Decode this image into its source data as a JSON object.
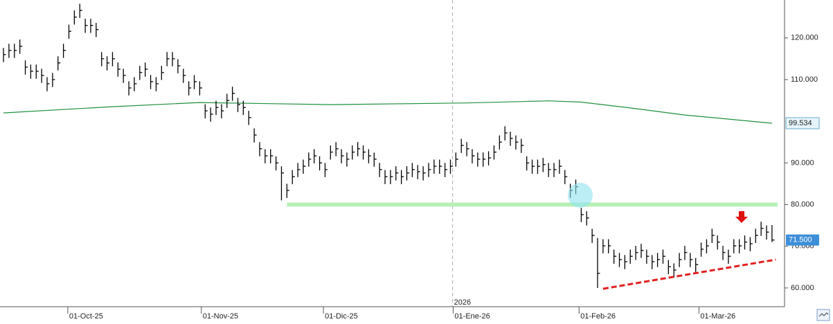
{
  "chart_data": {
    "type": "ohlc",
    "color": "#000000",
    "ylim": [
      55.5,
      129.1
    ],
    "yticks": [
      {
        "value": 60,
        "label": "60.000"
      },
      {
        "value": 70,
        "label": "70.000"
      },
      {
        "value": 80,
        "label": "80.000"
      },
      {
        "value": 90,
        "label": "90.000"
      },
      {
        "value": 110,
        "label": "110.000"
      },
      {
        "value": 120,
        "label": "120.000"
      }
    ],
    "xlim": [
      -0.64,
      143.3
    ],
    "xticks": [
      {
        "value": 11.8,
        "label": "01-Oct-25"
      },
      {
        "value": 36.3,
        "label": "01-Nov-25"
      },
      {
        "value": 58.7,
        "label": "01-Dic-25"
      },
      {
        "value": 82.5,
        "label": "01-Ene-26"
      },
      {
        "value": 105.6,
        "label": "01-Feb-26"
      },
      {
        "value": 127.6,
        "label": "01-Mar-26"
      }
    ],
    "year_marker": {
      "value": 82.4,
      "label": "2026"
    },
    "high": [
      117.6,
      118.6,
      118.6,
      119.6,
      114.6,
      113.6,
      113.6,
      112.6,
      110.6,
      111.6,
      115.6,
      118.6,
      123.2,
      126.6,
      128.2,
      124.6,
      124.6,
      123.6,
      116.6,
      115.6,
      116.6,
      114.1,
      112.6,
      109.6,
      110.6,
      113.3,
      114.1,
      111.1,
      110.6,
      113.3,
      116.6,
      116.6,
      114.9,
      112.6,
      109.6,
      111.1,
      109.6,
      104.1,
      103.3,
      104.9,
      104.1,
      106.6,
      108.3,
      105.6,
      104.9,
      102.5,
      98.3,
      95,
      93.3,
      93.3,
      91.6,
      89.2,
      85,
      88.3,
      90,
      90.8,
      92.5,
      93.3,
      91.6,
      90,
      94.2,
      95,
      93.3,
      92.5,
      94.2,
      95,
      94.2,
      93.3,
      92.5,
      90,
      88.3,
      88.3,
      89.2,
      88.3,
      89.2,
      90,
      89.5,
      89.2,
      90,
      90.8,
      90.8,
      90,
      90.8,
      92.5,
      95.8,
      95,
      93.3,
      92.5,
      92.5,
      92.8,
      94.2,
      96.6,
      98.8,
      97.5,
      96.6,
      95.8,
      91.6,
      90.8,
      90.8,
      91.2,
      90,
      90,
      90.8,
      88.3,
      85,
      86,
      79.2,
      78.4,
      74.2,
      72,
      71.7,
      71.7,
      69.2,
      68.4,
      67.9,
      69.2,
      70.1,
      70.6,
      69.2,
      67.9,
      68.4,
      69.2,
      66.7,
      65.9,
      68.4,
      70.1,
      68.4,
      67.2,
      70.9,
      71.7,
      74.2,
      72.6,
      70.1,
      69.2,
      71.7,
      71.7,
      72.6,
      72.2,
      74.2,
      75.9,
      75,
      75.1
    ],
    "low": [
      114.2,
      115.2,
      115.2,
      116.2,
      111.2,
      110.2,
      110.2,
      109.2,
      107.2,
      108.2,
      112.2,
      115.2,
      119.8,
      123.2,
      124.8,
      121.2,
      121.2,
      120.2,
      113.2,
      112.2,
      113.2,
      110.7,
      109.2,
      106.2,
      107.2,
      109.9,
      110.7,
      107.7,
      107.2,
      109.9,
      113.2,
      113.2,
      111.5,
      109.2,
      106.2,
      107.7,
      106.2,
      100.7,
      99.9,
      101.5,
      100.7,
      103.2,
      104.9,
      102.2,
      101.5,
      99.1,
      94.9,
      91.6,
      89.9,
      89.9,
      88.2,
      81,
      81.6,
      84.9,
      86.6,
      87.4,
      89.1,
      89.9,
      88.2,
      86.6,
      90.8,
      91.6,
      89.9,
      89.1,
      90.8,
      91.6,
      90.8,
      89.9,
      89.1,
      86.6,
      84.9,
      84.9,
      85.8,
      84.9,
      85.8,
      86.6,
      86.1,
      85.8,
      86.6,
      87.4,
      87.4,
      86.6,
      87.4,
      89.1,
      92.4,
      91.6,
      89.9,
      89.1,
      89.1,
      89.4,
      90.8,
      93.2,
      95.4,
      94.1,
      93.2,
      92.4,
      88.2,
      87.4,
      87.4,
      87.8,
      86.6,
      86.6,
      87.4,
      84.9,
      81.6,
      82.5,
      75.8,
      75,
      70.8,
      60,
      68.3,
      68.3,
      65.8,
      65,
      64.5,
      65.8,
      66.7,
      67.2,
      65.8,
      64.5,
      65,
      65.8,
      63.3,
      62.5,
      65,
      66.7,
      65,
      63.8,
      67.5,
      68.3,
      70.8,
      69.2,
      66.7,
      65.8,
      68.3,
      68.3,
      69.2,
      68.8,
      70.8,
      72.5,
      71.6,
      71
    ],
    "close": [
      116,
      117,
      117,
      118,
      113,
      112,
      112,
      111,
      109,
      110,
      114,
      117,
      121.6,
      125,
      126.6,
      123,
      123,
      122,
      115,
      114,
      115,
      112.5,
      111,
      108,
      109,
      111.7,
      112.5,
      109.5,
      109,
      111.7,
      115,
      115,
      113.3,
      111,
      108,
      109.5,
      108,
      102.5,
      101.7,
      103.3,
      102.5,
      105,
      106.7,
      104,
      103.3,
      100.9,
      96.7,
      93.4,
      91.7,
      91.7,
      90,
      87.6,
      83.4,
      86.7,
      88.4,
      89.2,
      90.9,
      91.7,
      90,
      88.4,
      92.6,
      93.4,
      91.7,
      90.9,
      92.6,
      93.4,
      92.6,
      91.7,
      90.9,
      88.4,
      86.7,
      86.7,
      87.6,
      86.7,
      87.6,
      88.4,
      87.9,
      87.6,
      88.4,
      89.2,
      89.2,
      88.4,
      89.2,
      90.9,
      94.2,
      93.4,
      91.7,
      90.9,
      90.9,
      91.2,
      92.6,
      95,
      97.2,
      95.9,
      95,
      94.2,
      90,
      89.2,
      89.2,
      89.6,
      88.4,
      88.4,
      89.2,
      86.7,
      83.4,
      84.3,
      77.6,
      76.8,
      72.6,
      63.5,
      70.1,
      70.1,
      67.6,
      66.8,
      66.3,
      67.6,
      68.5,
      69,
      67.6,
      66.3,
      66.8,
      67.6,
      65.1,
      64.3,
      66.8,
      68.5,
      66.8,
      65.6,
      69.3,
      70.1,
      72.6,
      71,
      68.5,
      67.6,
      70.1,
      70.1,
      71,
      70.6,
      72.6,
      74.3,
      73.4,
      71.5
    ],
    "close_label": "71.500",
    "ma": {
      "color": "#1e8f3c",
      "x": [
        0,
        20,
        36,
        60,
        85,
        100,
        106,
        115,
        125,
        141
      ],
      "values": [
        102.0,
        103.5,
        104.5,
        104.0,
        104.4,
        104.9,
        104.6,
        103.2,
        101.5,
        99.534
      ],
      "label": "99.534"
    },
    "support": {
      "value": 80,
      "x": [
        52,
        143
      ],
      "color": "#b8f0b8"
    },
    "trendline": {
      "x": [
        110,
        141.7
      ],
      "values": [
        59.8,
        66.8
      ],
      "color": "#e02020"
    }
  }
}
